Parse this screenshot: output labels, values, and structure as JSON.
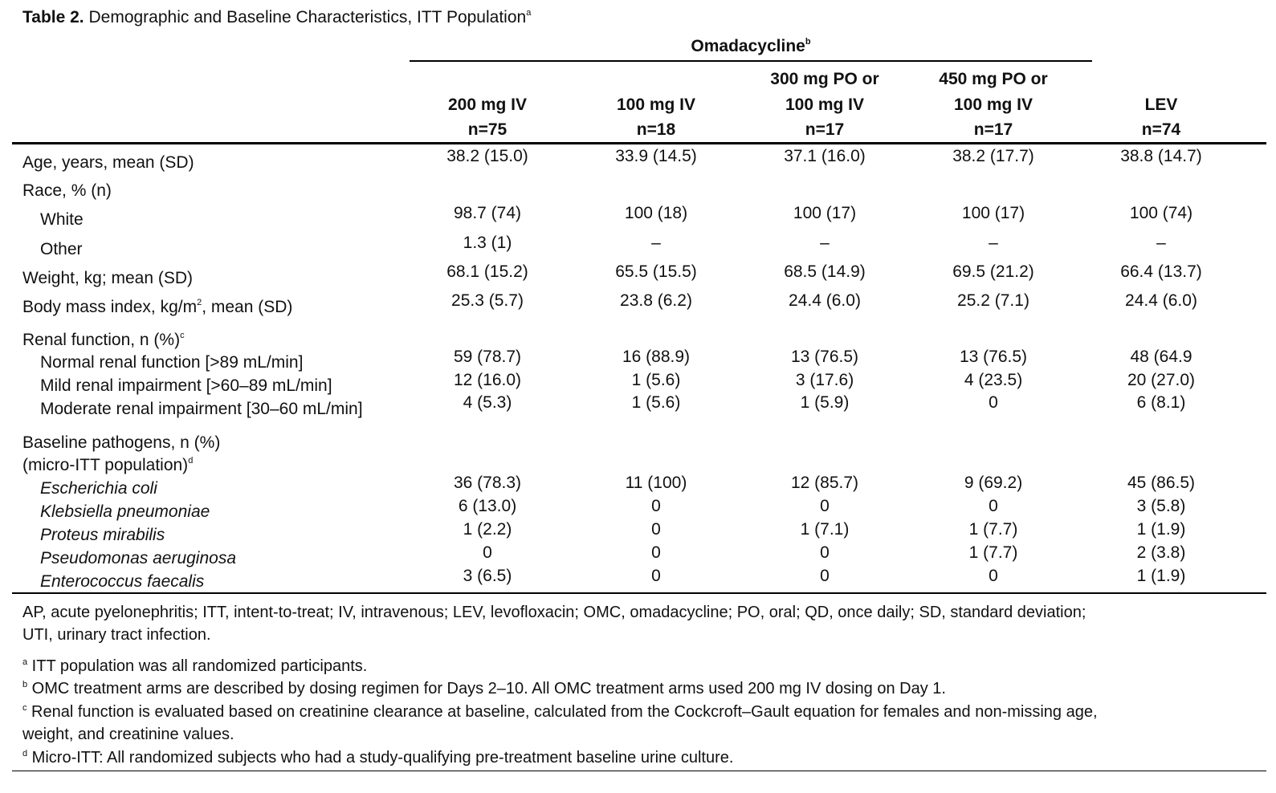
{
  "title": {
    "bold": "Table 2.",
    "text": " Demographic and Baseline Characteristics, ITT Population",
    "sup": "a"
  },
  "group_header": {
    "text": "Omadacycline",
    "sup": "b"
  },
  "columns": [
    {
      "line1": "",
      "line2": "200 mg IV",
      "n": "n=75"
    },
    {
      "line1": "",
      "line2": "100 mg IV",
      "n": "n=18"
    },
    {
      "line1": "300 mg PO or",
      "line2": "100 mg IV",
      "n": "n=17"
    },
    {
      "line1": "450 mg PO or",
      "line2": "100 mg IV",
      "n": "n=17"
    },
    {
      "line1": "",
      "line2": "LEV",
      "n": "n=74"
    }
  ],
  "rows": {
    "age": {
      "label": "Age, years, mean (SD)",
      "values": [
        "38.2 (15.0)",
        "33.9 (14.5)",
        "37.1 (16.0)",
        "38.2 (17.7)",
        "38.8 (14.7)"
      ]
    },
    "race": {
      "label": "Race, % (n)"
    },
    "white": {
      "label": "White",
      "values": [
        "98.7 (74)",
        "100 (18)",
        "100 (17)",
        "100 (17)",
        "100 (74)"
      ]
    },
    "other": {
      "label": "Other",
      "values": [
        "1.3 (1)",
        "–",
        "–",
        "–",
        "–"
      ]
    },
    "weight": {
      "label": "Weight, kg; mean (SD)",
      "values": [
        "68.1 (15.2)",
        "65.5 (15.5)",
        "68.5 (14.9)",
        "69.5 (21.2)",
        "66.4 (13.7)"
      ]
    },
    "bmi": {
      "label_pre": "Body mass index, kg/m",
      "label_sup": "2",
      "label_post": ", mean (SD)",
      "values": [
        "25.3 (5.7)",
        "23.8 (6.2)",
        "24.4 (6.0)",
        "25.2 (7.1)",
        "24.4 (6.0)"
      ]
    },
    "renal": {
      "label": "Renal function, n (%)",
      "sup": "c"
    },
    "renal_normal": {
      "label": "Normal renal function [>89 mL/min]",
      "values": [
        "59 (78.7)",
        "16 (88.9)",
        "13 (76.5)",
        "13 (76.5)",
        "48 (64.9"
      ]
    },
    "renal_mild": {
      "label": "Mild renal impairment [>60–89 mL/min]",
      "values": [
        "12 (16.0)",
        "1 (5.6)",
        "3 (17.6)",
        "4 (23.5)",
        "20 (27.0)"
      ]
    },
    "renal_moderate": {
      "label": "Moderate renal impairment [30–60 mL/min]",
      "values": [
        "4 (5.3)",
        "1 (5.6)",
        "1 (5.9)",
        "0",
        "6 (8.1)"
      ]
    },
    "pathogens": {
      "label": "Baseline pathogens, n (%)",
      "label2": "(micro-ITT population)",
      "sup": "d"
    },
    "ecoli": {
      "label": "Escherichia coli",
      "values": [
        "36 (78.3)",
        "11 (100)",
        "12 (85.7)",
        "9 (69.2)",
        "45 (86.5)"
      ]
    },
    "kpneu": {
      "label": "Klebsiella pneumoniae",
      "values": [
        "6 (13.0)",
        "0",
        "0",
        "0",
        "3 (5.8)"
      ]
    },
    "proteus": {
      "label": "Proteus mirabilis",
      "values": [
        "1 (2.2)",
        "0",
        "1 (7.1)",
        "1 (7.7)",
        "1 (1.9)"
      ]
    },
    "pseudo": {
      "label": "Pseudomonas aeruginosa",
      "values": [
        "0",
        "0",
        "0",
        "1 (7.7)",
        "2 (3.8)"
      ]
    },
    "entero": {
      "label": "Enterococcus faecalis",
      "values": [
        "3 (6.5)",
        "0",
        "0",
        "0",
        "1 (1.9)"
      ]
    }
  },
  "abbreviations": {
    "line1": "AP, acute pyelonephritis; ITT, intent-to-treat; IV, intravenous; LEV, levofloxacin; OMC, omadacycline; PO, oral; QD, once daily; SD, standard deviation;",
    "line2": "UTI, urinary tract infection."
  },
  "footnotes": [
    {
      "sup": "a",
      "text": " ITT population was all randomized participants."
    },
    {
      "sup": "b",
      "text": " OMC treatment arms are described by dosing regimen for Days 2–10. All OMC treatment arms used 200 mg IV dosing on Day 1."
    },
    {
      "sup": "c",
      "text": " Renal function is evaluated based on creatinine clearance at baseline, calculated from the Cockcroft–Gault equation for females and non-missing age,",
      "text2": "weight, and creatinine values."
    },
    {
      "sup": "d",
      "text": " Micro-ITT: All randomized subjects who had a study-qualifying pre-treatment baseline urine culture."
    }
  ]
}
